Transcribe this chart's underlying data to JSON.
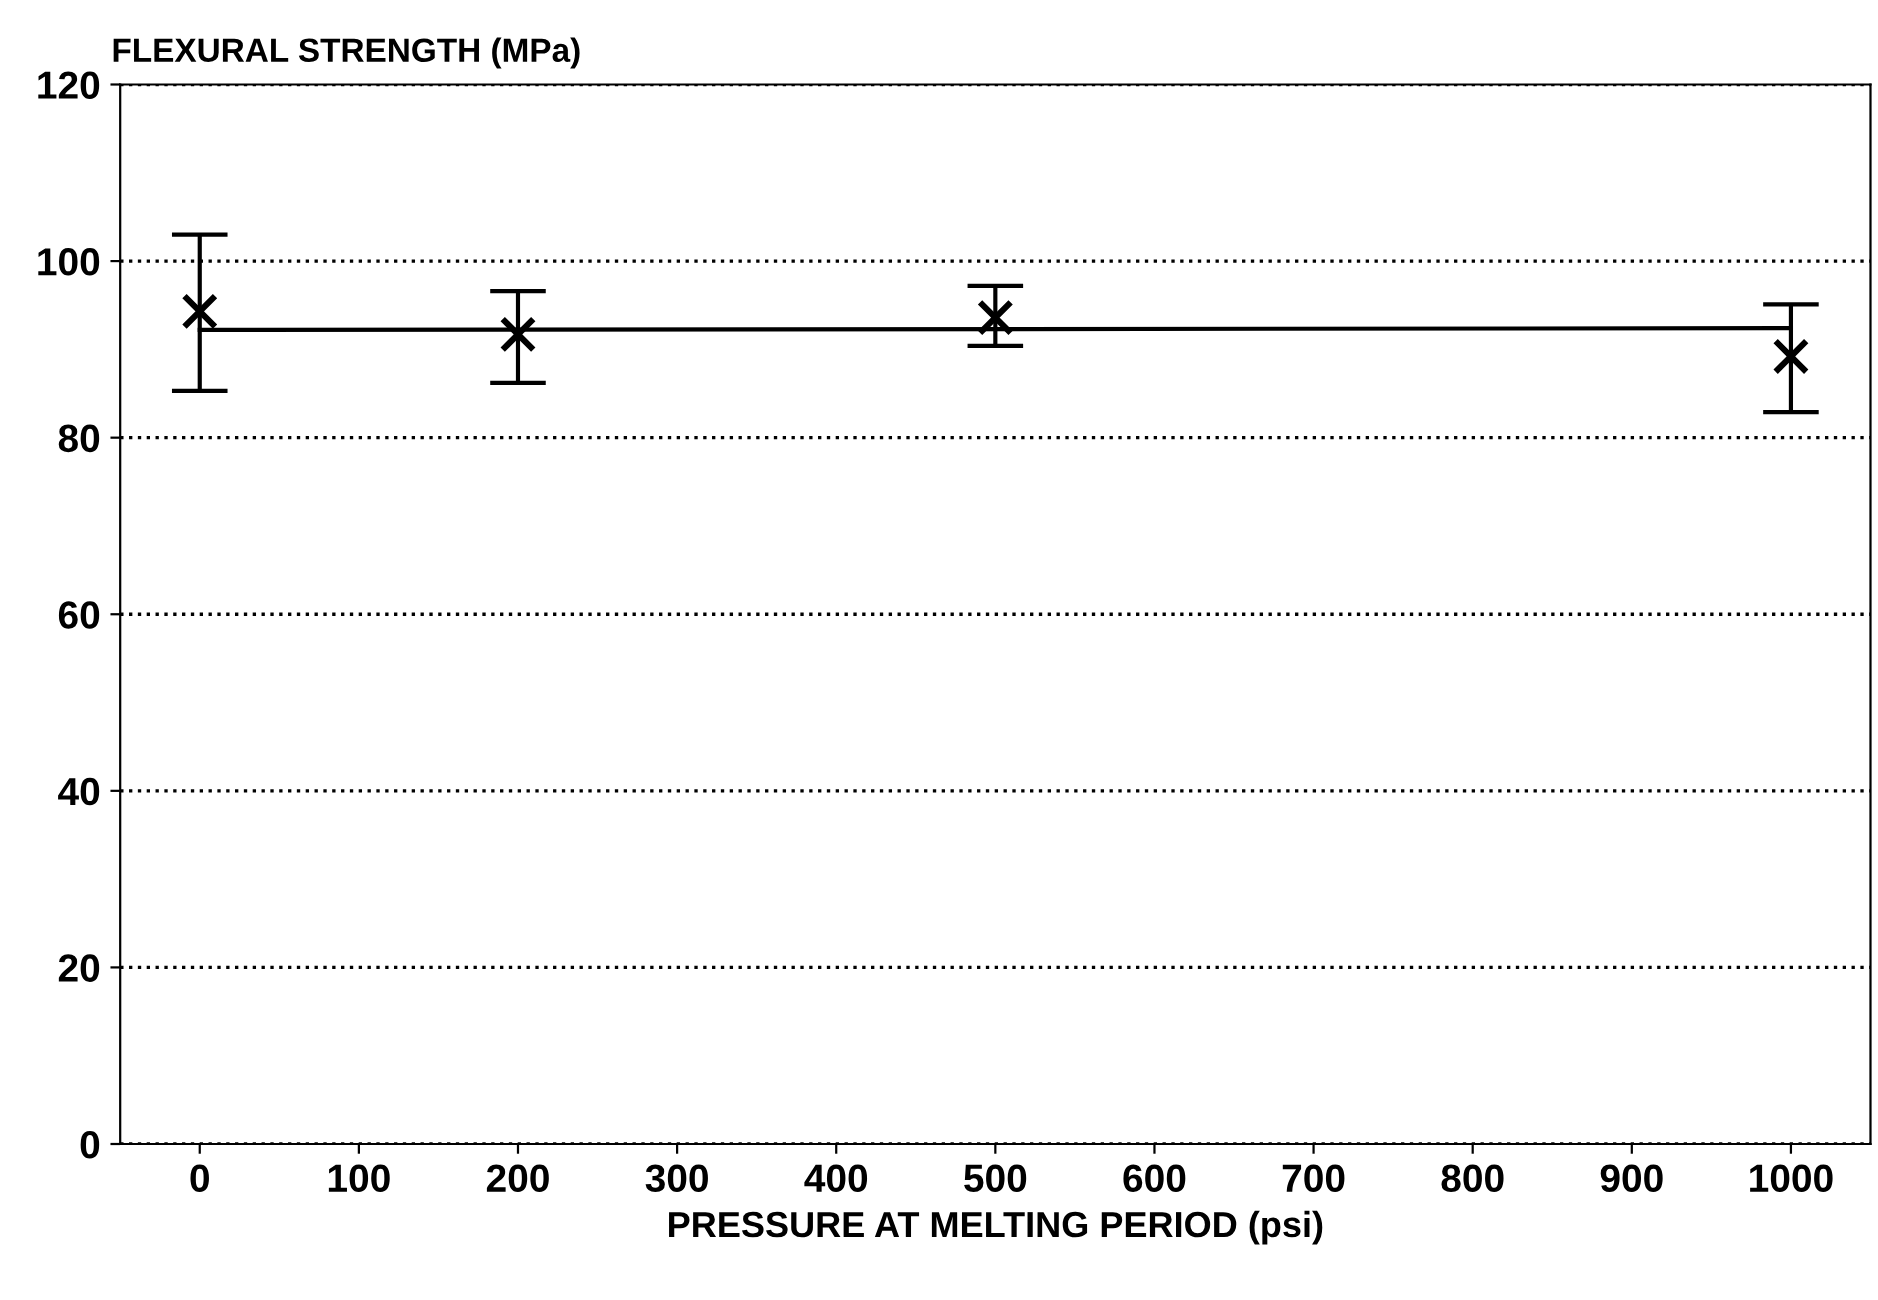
{
  "chart_data": {
    "type": "scatter",
    "xlabel": "PRESSURE AT MELTING PERIOD (psi)",
    "ylabel": "FLEXURAL STRENGTH (MPa)",
    "x": [
      0,
      200,
      500,
      1000
    ],
    "series": [
      {
        "color": "#000000",
        "values": [
          94.3,
          91.7,
          93.6,
          89.2
        ],
        "errors": [
          [
            85.3,
            103.0
          ],
          [
            86.2,
            96.6
          ],
          [
            90.4,
            97.2
          ],
          [
            82.9,
            95.1
          ]
        ],
        "marker": "cross"
      },
      {
        "type": "line",
        "color": "#000000",
        "x": [
          0,
          1000
        ],
        "values": [
          92.2,
          92.4
        ],
        "marker": "none",
        "line_style": "solid"
      }
    ],
    "xlim": [
      -50,
      1050
    ],
    "ylim": [
      0,
      120
    ],
    "xticks": [
      0,
      100,
      200,
      300,
      400,
      500,
      600,
      700,
      800,
      900,
      1000
    ],
    "yticks": [
      0,
      20,
      40,
      60,
      80,
      100,
      120
    ],
    "grid": "y"
  }
}
